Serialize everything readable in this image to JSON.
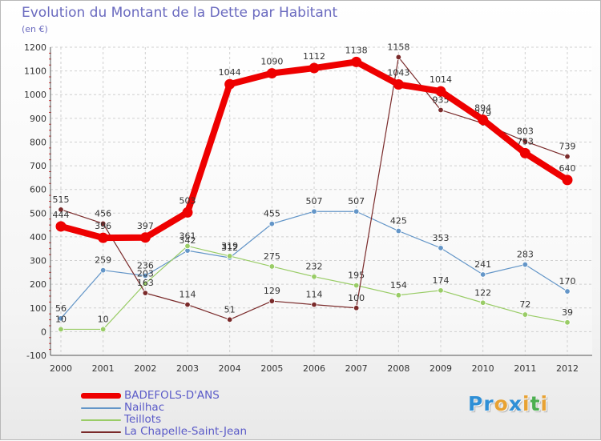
{
  "header": {
    "title": "Evolution du Montant de la Dette par Habitant",
    "unit": "(en €)"
  },
  "brand": {
    "name": "Proxiti",
    "letters": [
      "P",
      "r",
      "o",
      "x",
      "i",
      "t",
      "i"
    ],
    "letter_colors": [
      "#2f8fd6",
      "#2f8fd6",
      "#e8a233",
      "#2f8fd6",
      "#e8a233",
      "#4caf50",
      "#e8a233"
    ]
  },
  "chart_data": {
    "type": "line",
    "title": "Evolution du Montant de la Dette par Habitant",
    "ylabel": "(en €)",
    "xlabel": "",
    "x": [
      "2000",
      "2001",
      "2002",
      "2003",
      "2004",
      "2005",
      "2006",
      "2007",
      "2008",
      "2009",
      "2010",
      "2011",
      "2012"
    ],
    "ylim": [
      -100,
      1200
    ],
    "yticks": [
      "-100",
      "0",
      "100",
      "200",
      "300",
      "400",
      "500",
      "600",
      "700",
      "800",
      "900",
      "1000",
      "1100",
      "1200"
    ],
    "grid": true,
    "legend": "bottom-left",
    "series": [
      {
        "name": "BADEFOLS-D'ANS",
        "color": "#ee0000",
        "values": [
          444,
          396,
          397,
          503,
          1044,
          1090,
          1112,
          1138,
          1043,
          1014,
          894,
          753,
          640
        ],
        "labels": [
          "444",
          "396",
          "397",
          "503",
          "1044",
          "1090",
          "1112",
          "1138",
          "1043",
          "1014",
          "894",
          "753",
          "640"
        ]
      },
      {
        "name": "Nailhac",
        "color": "#6496c8",
        "values": [
          56,
          259,
          236,
          342,
          312,
          455,
          507,
          507,
          425,
          353,
          241,
          283,
          170
        ],
        "labels": [
          "56",
          "259",
          "236",
          "342",
          "312",
          "455",
          "507",
          "507",
          "425",
          "353",
          "241",
          "283",
          "170"
        ]
      },
      {
        "name": "Teillots",
        "color": "#99cc66",
        "values": [
          10,
          10,
          203,
          361,
          319,
          275,
          232,
          195,
          154,
          174,
          122,
          72,
          39
        ],
        "labels": [
          "10",
          "10",
          "203",
          "361",
          "319",
          "275",
          "232",
          "195",
          "154",
          "174",
          "122",
          "72",
          "39"
        ]
      },
      {
        "name": "La Chapelle-Saint-Jean",
        "color": "#7a2a2a",
        "values": [
          515,
          456,
          163,
          114,
          51,
          129,
          114,
          100,
          1158,
          935,
          879,
          803,
          739
        ],
        "labels": [
          "515",
          "456",
          "163",
          "114",
          "51",
          "129",
          "114",
          "100",
          "1158",
          "935",
          "879",
          "803",
          "739"
        ]
      }
    ]
  }
}
